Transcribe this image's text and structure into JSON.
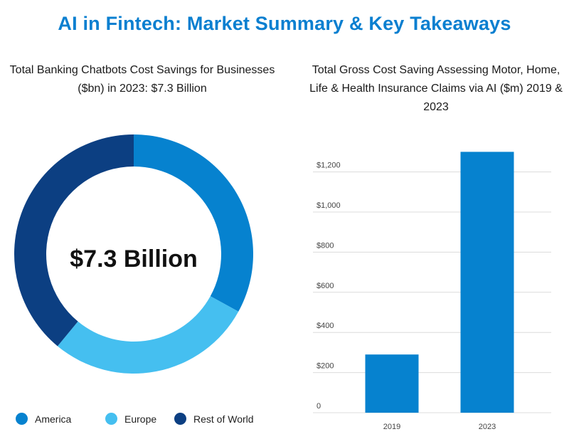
{
  "title": "AI in Fintech: Market Summary & Key Takeaways",
  "donut": {
    "title": "Total Banking Chatbots Cost Savings for Businesses ($bn) in 2023: $7.3 Billion",
    "center_label": "$7.3 Billion"
  },
  "bar": {
    "title": "Total Gross Cost Saving Assessing Motor, Home, Life & Health Insurance Claims via AI ($m) 2019 & 2023"
  },
  "colors": {
    "title": "#0a7fd0",
    "america": "#0682cf",
    "europe": "#45bff0",
    "rest_of_world": "#0c3f82",
    "bar": "#0682cf",
    "grid": "#dcdcdc"
  },
  "chart_data": [
    {
      "type": "pie",
      "title": "Total Banking Chatbots Cost Savings for Businesses ($bn) in 2023: $7.3 Billion",
      "total_label": "$7.3 Billion",
      "labels": [
        "America",
        "Europe",
        "Rest of World"
      ],
      "values": [
        33,
        28,
        39
      ],
      "unit": "percent of total (estimated)",
      "donut": true,
      "legend": "bottom"
    },
    {
      "type": "bar",
      "title": "Total Gross Cost Saving Assessing Motor, Home, Life & Health Insurance Claims via AI ($m) 2019 & 2023",
      "categories": [
        "2019",
        "2023"
      ],
      "values": [
        290,
        1300
      ],
      "ylim": [
        0,
        1200
      ],
      "yticks": [
        "0",
        "$200",
        "$400",
        "$600",
        "$800",
        "$1,000",
        "$1,200"
      ],
      "grid": true,
      "xlabel": "",
      "ylabel": ""
    }
  ]
}
